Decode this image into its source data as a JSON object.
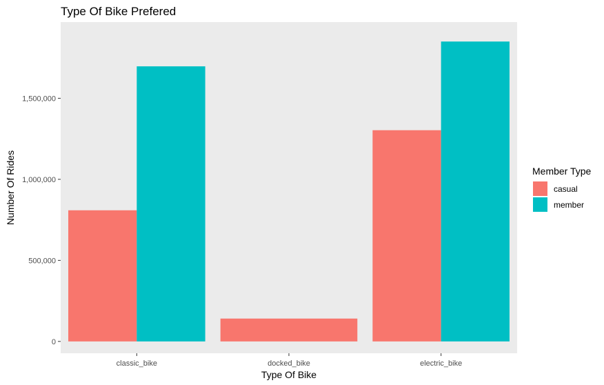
{
  "chart_data": {
    "type": "bar",
    "title": "Type Of Bike Prefered",
    "xlabel": "Type Of Bike",
    "ylabel": "Number Of Rides",
    "categories": [
      "classic_bike",
      "docked_bike",
      "electric_bike"
    ],
    "series": [
      {
        "name": "casual",
        "values": [
          809000,
          141000,
          1303000
        ],
        "color": "#F8766D"
      },
      {
        "name": "member",
        "values": [
          1697000,
          0,
          1850000
        ],
        "color": "#00BFC4"
      }
    ],
    "ylim": [
      -73000,
      1970000
    ],
    "yticks": [
      0,
      500000,
      1000000,
      1500000
    ],
    "ytick_labels": [
      "0",
      "500,000",
      "1,000,000",
      "1,500,000"
    ],
    "legend": {
      "title": "Member Type",
      "position": "right"
    },
    "grid": false,
    "panel_background": "#EBEBEB"
  }
}
